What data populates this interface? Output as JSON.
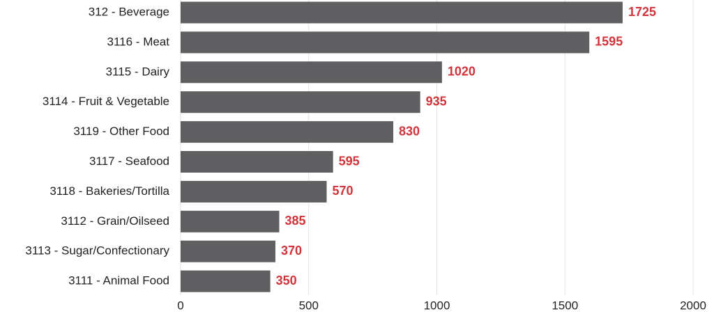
{
  "chart_data": {
    "type": "bar",
    "orientation": "horizontal",
    "categories": [
      "312 - Beverage",
      "3116 - Meat",
      "3115 - Dairy",
      "3114 - Fruit & Vegetable",
      "3119 - Other Food",
      "3117 - Seafood",
      "3118 - Bakeries/Tortilla",
      "3112 - Grain/Oilseed",
      "3113 - Sugar/Confectionary",
      "3111 - Animal Food"
    ],
    "values": [
      1725,
      1595,
      1020,
      935,
      830,
      595,
      570,
      385,
      370,
      350
    ],
    "color": "#5f5e60",
    "label_color": "#d0343a",
    "xlim": [
      0,
      2000
    ],
    "xticks": [
      0,
      500,
      1000,
      1500,
      2000
    ],
    "grid": true
  }
}
